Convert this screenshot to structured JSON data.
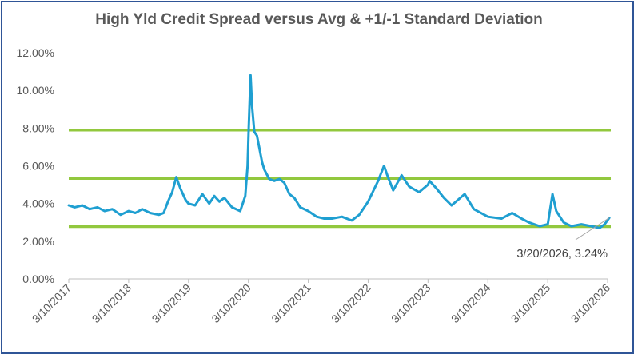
{
  "chart_data": {
    "type": "line",
    "title": "High Yld Credit Spread versus Avg & +1/-1 Standard Deviation",
    "xlabel": "",
    "ylabel": "",
    "ylim": [
      0,
      12
    ],
    "yticks": [
      "0.00%",
      "2.00%",
      "4.00%",
      "6.00%",
      "8.00%",
      "10.00%",
      "12.00%"
    ],
    "xticks": [
      "3/10/2017",
      "3/10/2018",
      "3/10/2019",
      "3/10/2020",
      "3/10/2021",
      "3/10/2022",
      "3/10/2023",
      "3/10/2024",
      "3/10/2025",
      "3/10/2026"
    ],
    "grid": false,
    "legend": "none",
    "colors": {
      "series": "#1f9fd1",
      "reference": "#92c83e",
      "axis": "#bfbfbf",
      "title": "#595959"
    },
    "reference_lines": [
      {
        "label": "+1 Std Dev",
        "y": 7.9
      },
      {
        "label": "Average",
        "y": 5.33
      },
      {
        "label": "-1 Std Dev",
        "y": 2.78
      }
    ],
    "series": [
      {
        "x": [
          "2017-03-10",
          "2017-04-15",
          "2017-06-01",
          "2017-07-15",
          "2017-09-01",
          "2017-10-15",
          "2017-12-01",
          "2018-01-20",
          "2018-03-10",
          "2018-04-20",
          "2018-06-01",
          "2018-07-20",
          "2018-09-10",
          "2018-10-10",
          "2018-11-05",
          "2018-12-01",
          "2018-12-26",
          "2019-01-20",
          "2019-02-20",
          "2019-03-10",
          "2019-04-20",
          "2019-06-03",
          "2019-07-15",
          "2019-08-15",
          "2019-09-15",
          "2019-10-15",
          "2019-12-01",
          "2020-01-20",
          "2020-02-20",
          "2020-03-05",
          "2020-03-12",
          "2020-03-23",
          "2020-04-01",
          "2020-04-15",
          "2020-05-01",
          "2020-06-01",
          "2020-06-15",
          "2020-07-15",
          "2020-08-15",
          "2020-09-15",
          "2020-10-15",
          "2020-11-15",
          "2020-12-15",
          "2021-01-20",
          "2021-03-10",
          "2021-05-01",
          "2021-06-15",
          "2021-08-01",
          "2021-10-01",
          "2021-11-30",
          "2022-01-15",
          "2022-03-10",
          "2022-05-10",
          "2022-06-15",
          "2022-07-05",
          "2022-08-10",
          "2022-09-30",
          "2022-11-15",
          "2023-01-15",
          "2023-03-10",
          "2023-03-20",
          "2023-05-01",
          "2023-06-15",
          "2023-08-01",
          "2023-10-20",
          "2023-12-15",
          "2024-03-10",
          "2024-06-01",
          "2024-08-05",
          "2024-10-01",
          "2024-11-15",
          "2025-01-20",
          "2025-03-10",
          "2025-04-08",
          "2025-05-01",
          "2025-06-15",
          "2025-08-01",
          "2025-10-01",
          "2025-12-01",
          "2026-01-20",
          "2026-02-20",
          "2026-03-20"
        ],
        "values": [
          3.9,
          3.8,
          3.9,
          3.7,
          3.8,
          3.6,
          3.7,
          3.4,
          3.6,
          3.5,
          3.7,
          3.5,
          3.4,
          3.5,
          4.1,
          4.6,
          5.4,
          4.8,
          4.2,
          4.0,
          3.9,
          4.5,
          4.0,
          4.4,
          4.1,
          4.3,
          3.8,
          3.6,
          4.4,
          6.0,
          8.0,
          10.8,
          9.2,
          7.8,
          7.6,
          6.2,
          5.8,
          5.3,
          5.2,
          5.3,
          5.1,
          4.5,
          4.3,
          3.8,
          3.6,
          3.3,
          3.2,
          3.2,
          3.3,
          3.1,
          3.4,
          4.1,
          5.2,
          6.0,
          5.5,
          4.7,
          5.5,
          4.9,
          4.6,
          5.0,
          5.2,
          4.8,
          4.3,
          3.9,
          4.5,
          3.7,
          3.3,
          3.2,
          3.5,
          3.2,
          3.0,
          2.8,
          2.9,
          4.5,
          3.6,
          3.0,
          2.8,
          2.9,
          2.8,
          2.7,
          2.9,
          3.24
        ]
      }
    ],
    "annotations": [
      {
        "text": "3/20/2026, 3.24%",
        "x": "2026-03-20",
        "y": 3.24
      }
    ]
  }
}
